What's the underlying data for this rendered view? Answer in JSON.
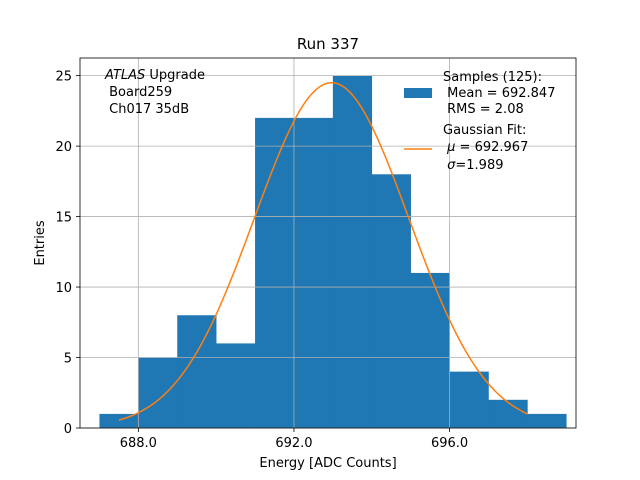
{
  "chart_data": {
    "type": "bar",
    "title": "Run 337",
    "xlabel": "Energy [ADC Counts]",
    "ylabel": "Entries",
    "xlim": [
      686.5,
      699.25
    ],
    "ylim": [
      0,
      26.25
    ],
    "xticks": [
      688.0,
      692.0,
      696.0
    ],
    "xtick_labels": [
      "688.0",
      "692.0",
      "696.0"
    ],
    "yticks": [
      0,
      5,
      10,
      15,
      20,
      25
    ],
    "ytick_labels": [
      "0",
      "5",
      "10",
      "15",
      "20",
      "25"
    ],
    "grid": true,
    "bin_edges": [
      687,
      688,
      689,
      690,
      691,
      692,
      693,
      694,
      695,
      696,
      697,
      698,
      699
    ],
    "counts": [
      1,
      5,
      8,
      6,
      22,
      22,
      25,
      18,
      11,
      4,
      2,
      1
    ],
    "hist_color": "#1f77b4",
    "fit": {
      "type": "gaussian",
      "mu": 692.967,
      "sigma": 1.989,
      "amplitude": 24.5,
      "x_range": [
        687.5,
        698.0
      ],
      "color": "#ff7f0e"
    },
    "annotation": {
      "italic": "ATLAS",
      "line1_rest": " Upgrade",
      "line2": " Board259",
      "line3": " Ch017 35dB"
    },
    "legend": {
      "position": "top-right",
      "hist_lines": [
        "Samples (125):",
        " Mean = 692.847",
        " RMS = 2.08"
      ],
      "fit_title": "Gaussian Fit:",
      "fit_mu_value": " = 692.967",
      "fit_sigma_value": "=1.989"
    }
  }
}
